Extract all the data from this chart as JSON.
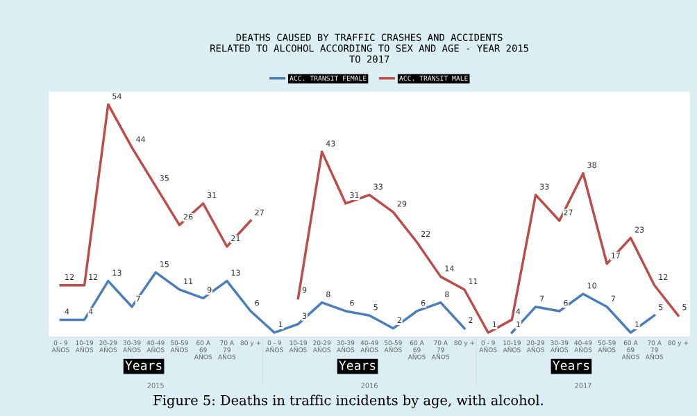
{
  "chart_data": {
    "type": "line",
    "title": "DEATHS CAUSED BY TRAFFIC CRASHES AND ACCIDENTS\nRELATED TO ALCOHOL ACCORDING TO SEX AND AGE - YEAR 2015\nTO 2017",
    "categories": [
      "0 - 9\nAÑOS",
      "10-19\nAÑOS",
      "20-29\nAÑOS",
      "30-39\nAÑOS",
      "40-49\nAÑOS",
      "50-59\nAÑOS",
      "60 A\n69\nAÑOS",
      "70 A\n79\nAÑOS",
      "80 y +",
      "0 - 9\nAÑOS",
      "10-19\nAÑOS",
      "20-29\nAÑOS",
      "30-39\nAÑOS",
      "40-49\nAÑOS",
      "50-59\nAÑOS",
      "60 A\n69\nAÑOS",
      "70 A\n79\nAÑOS",
      "80 y +",
      "0 - 9\nAÑOS",
      "10-19\nAÑOS",
      "20-29\nAÑOS",
      "30-39\nAÑOS",
      "40-49\nAÑOS",
      "50-59\nAÑOS",
      "60 A\n69\nAÑOS",
      "70 A\n79\nAÑOS",
      "80 y +"
    ],
    "series": [
      {
        "name": "ACC. TRANSIT FEMALE",
        "color": "#4a7ebb",
        "values": [
          4,
          4,
          13,
          7,
          15,
          11,
          9,
          13,
          6,
          1,
          3,
          8,
          6,
          5,
          2,
          6,
          8,
          2,
          null,
          1,
          7,
          6,
          10,
          7,
          1,
          5,
          null
        ]
      },
      {
        "name": "ACC. TRANSIT MALE",
        "color": "#be4b48",
        "values": [
          12,
          12,
          54,
          44,
          35,
          26,
          31,
          21,
          27,
          null,
          9,
          43,
          31,
          33,
          29,
          22,
          14,
          11,
          1,
          4,
          33,
          27,
          38,
          17,
          23,
          12,
          5
        ]
      }
    ],
    "ylim": [
      0,
      57
    ],
    "tick_labels": "x",
    "data_labels": true,
    "legend": "top",
    "grid": false,
    "marker": "none",
    "line_style": "solid",
    "annotations": [
      "Years",
      "Years",
      "Years",
      "2015",
      "2016",
      "2017",
      "Figure 5: Deaths in traffic incidents by age, with alcohol."
    ]
  }
}
